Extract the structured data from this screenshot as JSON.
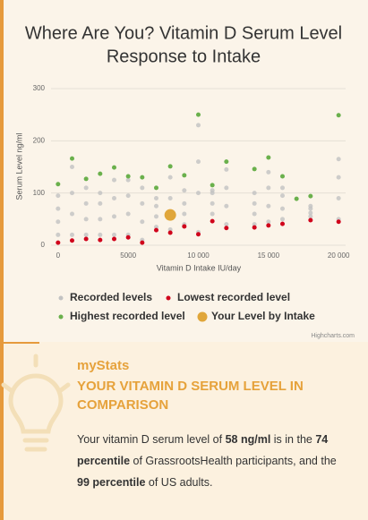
{
  "chart_data": {
    "type": "scatter",
    "title": "Where Are You? Vitamin D Serum Level",
    "subtitle": "Response to Intake",
    "y_label": "Serum Level ng/ml",
    "x_label": "Vitamin D Intake IU/day",
    "credit": "Highcharts.com",
    "xlim": [
      -500,
      20500
    ],
    "xticks": [
      0,
      5000,
      {
        "value": 10000,
        "label": "10 000"
      },
      {
        "value": 15000,
        "label": "15 000"
      },
      {
        "value": 20000,
        "label": "20 000"
      }
    ],
    "ylim": [
      0,
      300
    ],
    "yticks": [
      0,
      100,
      200,
      300
    ],
    "grid": true,
    "series": [
      {
        "name": "Recorded levels",
        "color": "#c2c2c2",
        "x": [
          0,
          0,
          0,
          0,
          1000,
          1000,
          1000,
          1000,
          2000,
          2000,
          2000,
          2000,
          3000,
          3000,
          3000,
          3000,
          4000,
          4000,
          4000,
          4000,
          5000,
          5000,
          5000,
          5000,
          6000,
          6000,
          6000,
          6000,
          7000,
          7000,
          7000,
          7000,
          8000,
          8000,
          8000,
          8000,
          9000,
          9000,
          9000,
          9000,
          10000,
          10000,
          10000,
          10000,
          11000,
          11000,
          11000,
          11000,
          12000,
          12000,
          12000,
          12000,
          14000,
          14000,
          14000,
          14000,
          15000,
          15000,
          15000,
          15000,
          16000,
          16000,
          16000,
          16000,
          18000,
          18000,
          18000,
          18000,
          20000,
          20000,
          20000,
          20000
        ],
        "values": [
          20,
          45,
          70,
          95,
          20,
          60,
          100,
          150,
          20,
          50,
          80,
          110,
          20,
          50,
          80,
          100,
          20,
          55,
          90,
          125,
          20,
          60,
          95,
          125,
          10,
          45,
          80,
          110,
          35,
          55,
          75,
          90,
          30,
          60,
          90,
          130,
          40,
          60,
          80,
          105,
          25,
          100,
          160,
          230,
          60,
          80,
          100,
          105,
          40,
          75,
          110,
          145,
          40,
          60,
          80,
          100,
          45,
          75,
          110,
          140,
          50,
          70,
          95,
          110,
          55,
          62,
          70,
          75,
          50,
          90,
          130,
          165
        ]
      },
      {
        "name": "Lowest recorded level",
        "color": "#d0021b",
        "x": [
          0,
          1000,
          2000,
          3000,
          4000,
          5000,
          6000,
          7000,
          8000,
          9000,
          10000,
          11000,
          12000,
          14000,
          15000,
          16000,
          18000,
          20000
        ],
        "values": [
          5,
          9,
          12,
          10,
          12,
          15,
          5,
          29,
          24,
          36,
          21,
          46,
          33,
          34,
          38,
          41,
          48,
          45
        ]
      },
      {
        "name": "Highest recorded level",
        "color": "#6ab04c",
        "x": [
          0,
          1000,
          2000,
          3000,
          4000,
          5000,
          6000,
          7000,
          8000,
          9000,
          10000,
          11000,
          12000,
          14000,
          15000,
          16000,
          17000,
          18000,
          20000
        ],
        "values": [
          117,
          166,
          127,
          137,
          149,
          132,
          130,
          110,
          151,
          134,
          250,
          115,
          160,
          146,
          168,
          132,
          89,
          94,
          249
        ]
      },
      {
        "name": "Your Level by Intake",
        "color": "#e0a63a",
        "x": [
          8000
        ],
        "values": [
          58
        ]
      }
    ]
  },
  "stats": {
    "label": "myStats",
    "heading": "YOUR VITAMIN D SERUM LEVEL IN COMPARISON",
    "text": [
      "Your vitamin D serum level of ",
      "58 ng/ml",
      " is in the ",
      "74 percentile",
      " of GrassrootsHealth participants, and the ",
      "99 percentile",
      " of US adults."
    ]
  }
}
